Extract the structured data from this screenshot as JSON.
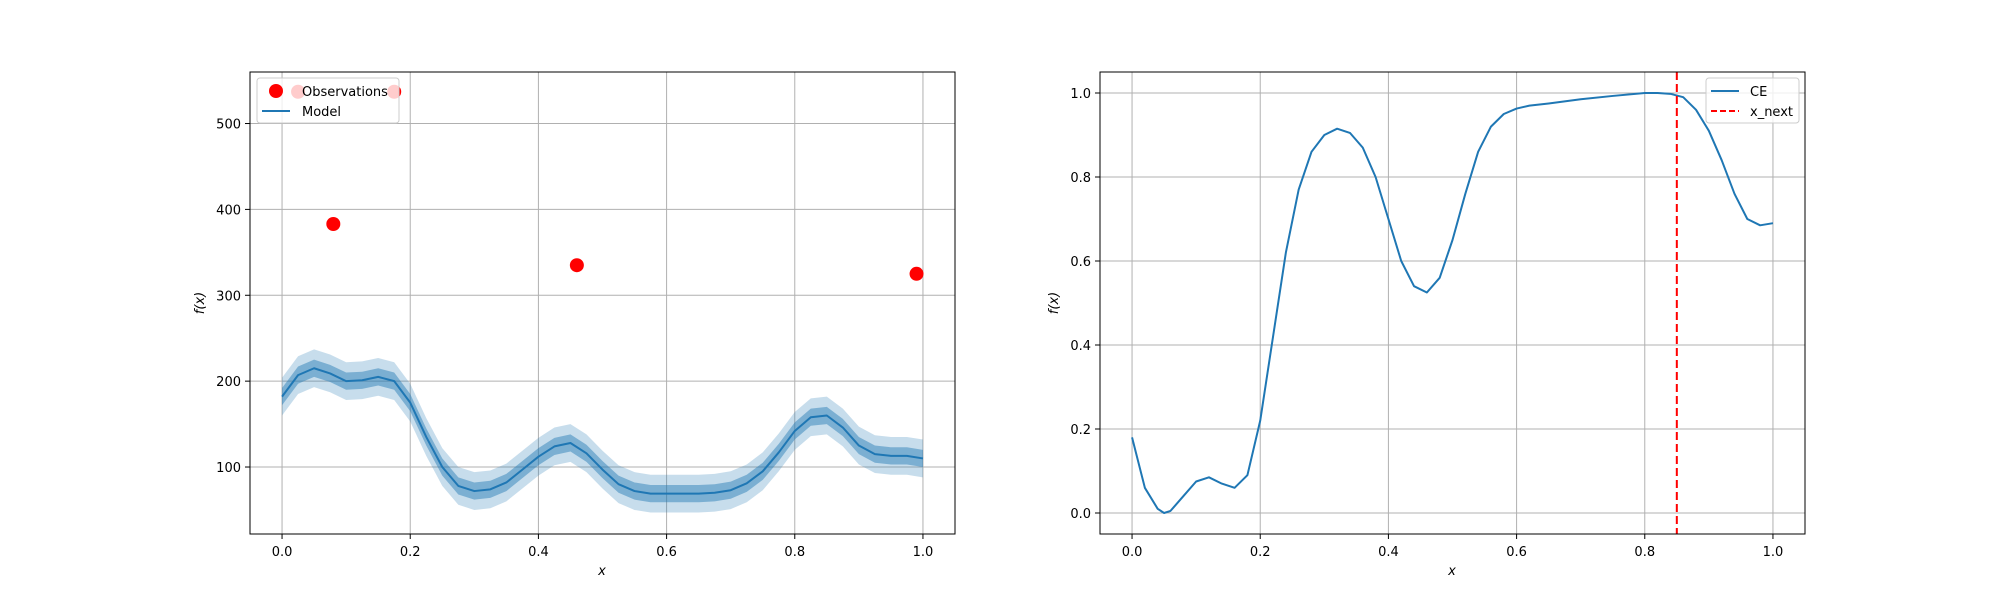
{
  "chart_data": [
    {
      "type": "line",
      "xlabel": "x",
      "ylabel": "f(x)",
      "xlim": [
        -0.05,
        1.05
      ],
      "ylim": [
        22,
        560
      ],
      "xticks": [
        0.0,
        0.2,
        0.4,
        0.6,
        0.8,
        1.0
      ],
      "xtick_labels": [
        "0.0",
        "0.2",
        "0.4",
        "0.6",
        "0.8",
        "1.0"
      ],
      "yticks": [
        100,
        200,
        300,
        400,
        500
      ],
      "ytick_labels": [
        "100",
        "200",
        "300",
        "400",
        "500"
      ],
      "grid": true,
      "legend_position": "upper-left",
      "legend": [
        "Observations",
        "Model"
      ],
      "series": [
        {
          "name": "Observations",
          "kind": "scatter",
          "color": "#ff0000",
          "points": [
            [
              0.025,
              537
            ],
            [
              0.08,
              383
            ],
            [
              0.175,
              537
            ],
            [
              0.46,
              335
            ],
            [
              0.99,
              325
            ]
          ]
        },
        {
          "name": "Model",
          "kind": "line",
          "color": "#1f77b4",
          "band_inner": 10,
          "band_outer": 22,
          "x": [
            0.0,
            0.025,
            0.05,
            0.075,
            0.1,
            0.125,
            0.15,
            0.175,
            0.2,
            0.225,
            0.25,
            0.275,
            0.3,
            0.325,
            0.35,
            0.375,
            0.4,
            0.425,
            0.45,
            0.475,
            0.5,
            0.525,
            0.55,
            0.575,
            0.6,
            0.625,
            0.65,
            0.675,
            0.7,
            0.725,
            0.75,
            0.775,
            0.8,
            0.825,
            0.85,
            0.875,
            0.9,
            0.925,
            0.95,
            0.975,
            1.0
          ],
          "y": [
            182,
            207,
            215,
            209,
            200,
            201,
            205,
            200,
            175,
            135,
            100,
            78,
            72,
            74,
            82,
            97,
            112,
            124,
            128,
            116,
            97,
            80,
            72,
            69,
            69,
            69,
            69,
            70,
            73,
            81,
            95,
            117,
            142,
            158,
            160,
            146,
            125,
            115,
            113,
            113,
            110
          ]
        }
      ]
    },
    {
      "type": "line",
      "xlabel": "x",
      "ylabel": "f(x)",
      "xlim": [
        -0.05,
        1.05
      ],
      "ylim": [
        -0.05,
        1.05
      ],
      "xticks": [
        0.0,
        0.2,
        0.4,
        0.6,
        0.8,
        1.0
      ],
      "xtick_labels": [
        "0.0",
        "0.2",
        "0.4",
        "0.6",
        "0.8",
        "1.0"
      ],
      "yticks": [
        0.0,
        0.2,
        0.4,
        0.6,
        0.8,
        1.0
      ],
      "ytick_labels": [
        "0.0",
        "0.2",
        "0.4",
        "0.6",
        "0.8",
        "1.0"
      ],
      "grid": true,
      "legend_position": "upper-right",
      "legend": [
        "CE",
        "x_next"
      ],
      "series": [
        {
          "name": "CE",
          "kind": "line",
          "color": "#1f77b4",
          "x": [
            0.0,
            0.02,
            0.04,
            0.05,
            0.06,
            0.08,
            0.1,
            0.12,
            0.14,
            0.16,
            0.18,
            0.2,
            0.22,
            0.24,
            0.26,
            0.28,
            0.3,
            0.32,
            0.34,
            0.36,
            0.38,
            0.4,
            0.42,
            0.44,
            0.46,
            0.48,
            0.5,
            0.52,
            0.54,
            0.56,
            0.58,
            0.6,
            0.62,
            0.65,
            0.7,
            0.75,
            0.8,
            0.82,
            0.84,
            0.86,
            0.88,
            0.9,
            0.92,
            0.94,
            0.96,
            0.98,
            1.0
          ],
          "y": [
            0.18,
            0.06,
            0.01,
            0.0,
            0.005,
            0.04,
            0.075,
            0.085,
            0.07,
            0.06,
            0.09,
            0.22,
            0.42,
            0.62,
            0.77,
            0.86,
            0.9,
            0.915,
            0.905,
            0.87,
            0.8,
            0.7,
            0.6,
            0.54,
            0.525,
            0.56,
            0.65,
            0.76,
            0.86,
            0.92,
            0.95,
            0.963,
            0.97,
            0.975,
            0.985,
            0.993,
            1.0,
            1.0,
            0.998,
            0.99,
            0.96,
            0.91,
            0.84,
            0.76,
            0.7,
            0.685,
            0.69
          ]
        },
        {
          "name": "x_next",
          "kind": "vline",
          "color": "#ff0000",
          "x": 0.85
        }
      ]
    }
  ]
}
